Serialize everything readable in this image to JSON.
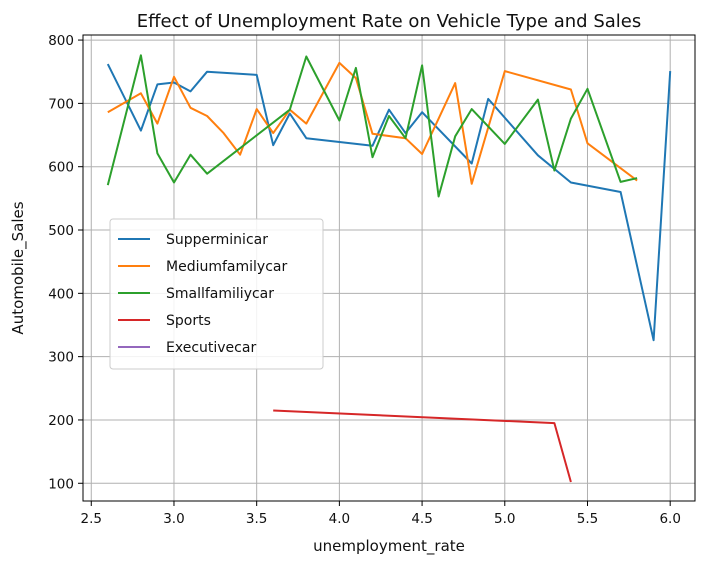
{
  "chart_data": {
    "type": "line",
    "title": "Effect of Unemployment Rate on Vehicle Type and Sales",
    "xlabel": "unemployment_rate",
    "ylabel": "Automobile_Sales",
    "xlim": [
      2.45,
      6.15
    ],
    "ylim": [
      72,
      808
    ],
    "xticks": [
      2.5,
      3.0,
      3.5,
      4.0,
      4.5,
      5.0,
      5.5,
      6.0
    ],
    "yticks": [
      100,
      200,
      300,
      400,
      500,
      600,
      700,
      800
    ],
    "xtick_labels": [
      "2.5",
      "3.0",
      "3.5",
      "4.0",
      "4.5",
      "5.0",
      "5.5",
      "6.0"
    ],
    "ytick_labels": [
      "100",
      "200",
      "300",
      "400",
      "500",
      "600",
      "700",
      "800"
    ],
    "grid": true,
    "legend_position": "center-left",
    "series": [
      {
        "name": "Supperminicar",
        "color": "#1f77b4",
        "points": [
          [
            2.6,
            762
          ],
          [
            2.8,
            657
          ],
          [
            2.9,
            730
          ],
          [
            3.0,
            733
          ],
          [
            3.1,
            719
          ],
          [
            3.2,
            750
          ],
          [
            3.5,
            745
          ],
          [
            3.6,
            634
          ],
          [
            3.7,
            684
          ],
          [
            3.8,
            645
          ],
          [
            4.2,
            633
          ],
          [
            4.3,
            690
          ],
          [
            4.4,
            653
          ],
          [
            4.5,
            686
          ],
          [
            4.8,
            605
          ],
          [
            4.9,
            707
          ],
          [
            5.2,
            618
          ],
          [
            5.4,
            575
          ],
          [
            5.7,
            560
          ],
          [
            5.9,
            326
          ],
          [
            6.0,
            751
          ]
        ]
      },
      {
        "name": "Mediumfamilycar",
        "color": "#ff7f0e",
        "points": [
          [
            2.6,
            686
          ],
          [
            2.7,
            701
          ],
          [
            2.8,
            716
          ],
          [
            2.9,
            668
          ],
          [
            3.0,
            742
          ],
          [
            3.1,
            693
          ],
          [
            3.2,
            680
          ],
          [
            3.3,
            653
          ],
          [
            3.4,
            619
          ],
          [
            3.5,
            691
          ],
          [
            3.6,
            653
          ],
          [
            3.7,
            690
          ],
          [
            3.8,
            668
          ],
          [
            4.0,
            764
          ],
          [
            4.1,
            740
          ],
          [
            4.2,
            652
          ],
          [
            4.4,
            645
          ],
          [
            4.5,
            620
          ],
          [
            4.7,
            732
          ],
          [
            4.8,
            573
          ],
          [
            5.0,
            751
          ],
          [
            5.4,
            722
          ],
          [
            5.5,
            637
          ],
          [
            5.8,
            578
          ]
        ]
      },
      {
        "name": "Smallfamiliycar",
        "color": "#2ca02c",
        "points": [
          [
            2.6,
            571
          ],
          [
            2.8,
            776
          ],
          [
            2.9,
            621
          ],
          [
            3.0,
            575
          ],
          [
            3.1,
            619
          ],
          [
            3.2,
            589
          ],
          [
            3.7,
            690
          ],
          [
            3.8,
            774
          ],
          [
            4.0,
            673
          ],
          [
            4.1,
            756
          ],
          [
            4.2,
            615
          ],
          [
            4.3,
            680
          ],
          [
            4.4,
            645
          ],
          [
            4.5,
            760
          ],
          [
            4.6,
            553
          ],
          [
            4.7,
            648
          ],
          [
            4.8,
            691
          ],
          [
            5.0,
            636
          ],
          [
            5.2,
            706
          ],
          [
            5.3,
            594
          ],
          [
            5.4,
            676
          ],
          [
            5.5,
            723
          ],
          [
            5.7,
            576
          ],
          [
            5.8,
            582
          ]
        ]
      },
      {
        "name": "Sports",
        "color": "#d62728",
        "points": [
          [
            3.6,
            215
          ],
          [
            5.3,
            195
          ],
          [
            5.4,
            102
          ]
        ]
      },
      {
        "name": "Executivecar",
        "color": "#9467bd",
        "points": []
      }
    ]
  }
}
